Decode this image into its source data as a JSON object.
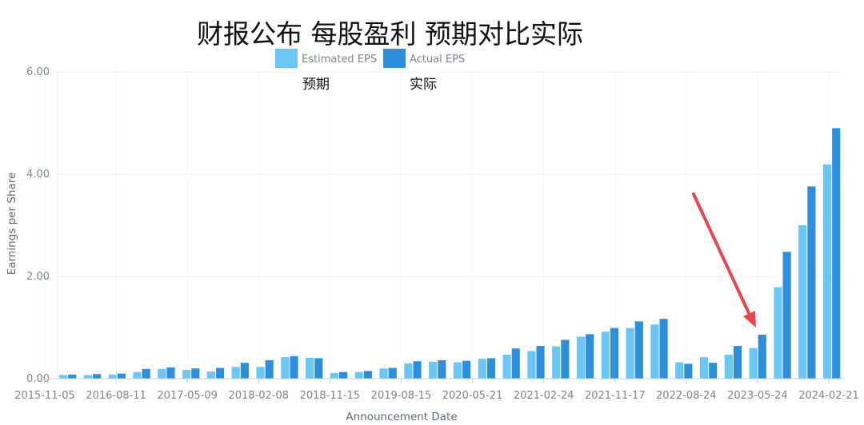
{
  "chart_data": {
    "type": "bar",
    "title": "财报公布 每股盈利 预期对比实际",
    "xlabel": "Announcement Date",
    "ylabel": "Earnings per Share",
    "ylim": [
      0,
      6
    ],
    "yticks": [
      "0.00",
      "2.00",
      "4.00",
      "6.00"
    ],
    "xticks": [
      "2015-11-05",
      "2016-08-11",
      "2017-05-09",
      "2018-02-08",
      "2018-11-15",
      "2019-08-15",
      "2020-05-21",
      "2021-02-24",
      "2021-11-17",
      "2022-08-24",
      "2023-05-24",
      "2024-02-21"
    ],
    "grid": true,
    "legend_position": "top",
    "series": [
      {
        "name": "Estimated EPS",
        "color": "#6ac6f4",
        "values": [
          0.07,
          0.07,
          0.08,
          0.13,
          0.19,
          0.17,
          0.14,
          0.23,
          0.23,
          0.42,
          0.41,
          0.11,
          0.13,
          0.2,
          0.3,
          0.33,
          0.32,
          0.39,
          0.47,
          0.54,
          0.63,
          0.82,
          0.92,
          0.99,
          1.06,
          0.32,
          0.42,
          0.47,
          0.6,
          1.79,
          3.0,
          4.19
        ]
      },
      {
        "name": "Actual EPS",
        "color": "#2d8fdc",
        "values": [
          0.08,
          0.09,
          0.1,
          0.19,
          0.22,
          0.2,
          0.21,
          0.31,
          0.36,
          0.44,
          0.4,
          0.13,
          0.15,
          0.21,
          0.34,
          0.36,
          0.35,
          0.4,
          0.59,
          0.64,
          0.76,
          0.87,
          0.99,
          1.12,
          1.17,
          0.29,
          0.31,
          0.64,
          0.86,
          2.48,
          3.76,
          4.9
        ]
      }
    ],
    "annotations": {
      "estimated_label": "预期",
      "actual_label": "实际",
      "arrow_color": "#e8464a"
    }
  }
}
